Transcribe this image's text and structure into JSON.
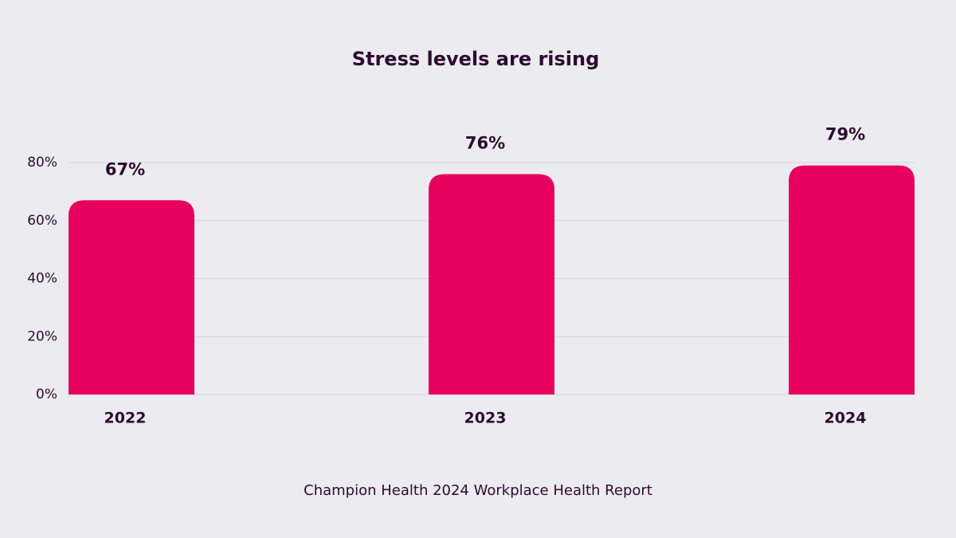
{
  "chart_data": {
    "type": "bar",
    "title": "Stress levels are rising",
    "categories": [
      "2022",
      "2023",
      "2024"
    ],
    "values": [
      67,
      76,
      79
    ],
    "value_labels": [
      "67%",
      "76%",
      "79%"
    ],
    "color": "#e8005f",
    "ylim": [
      0,
      80
    ],
    "yticks": [
      {
        "value": 0,
        "label": "0%"
      },
      {
        "value": 20,
        "label": "20%"
      },
      {
        "value": 40,
        "label": "40%"
      },
      {
        "value": 60,
        "label": "60%"
      },
      {
        "value": 80,
        "label": "80%"
      }
    ],
    "grid": true,
    "source": "Champion Health 2024 Workplace Health Report"
  }
}
